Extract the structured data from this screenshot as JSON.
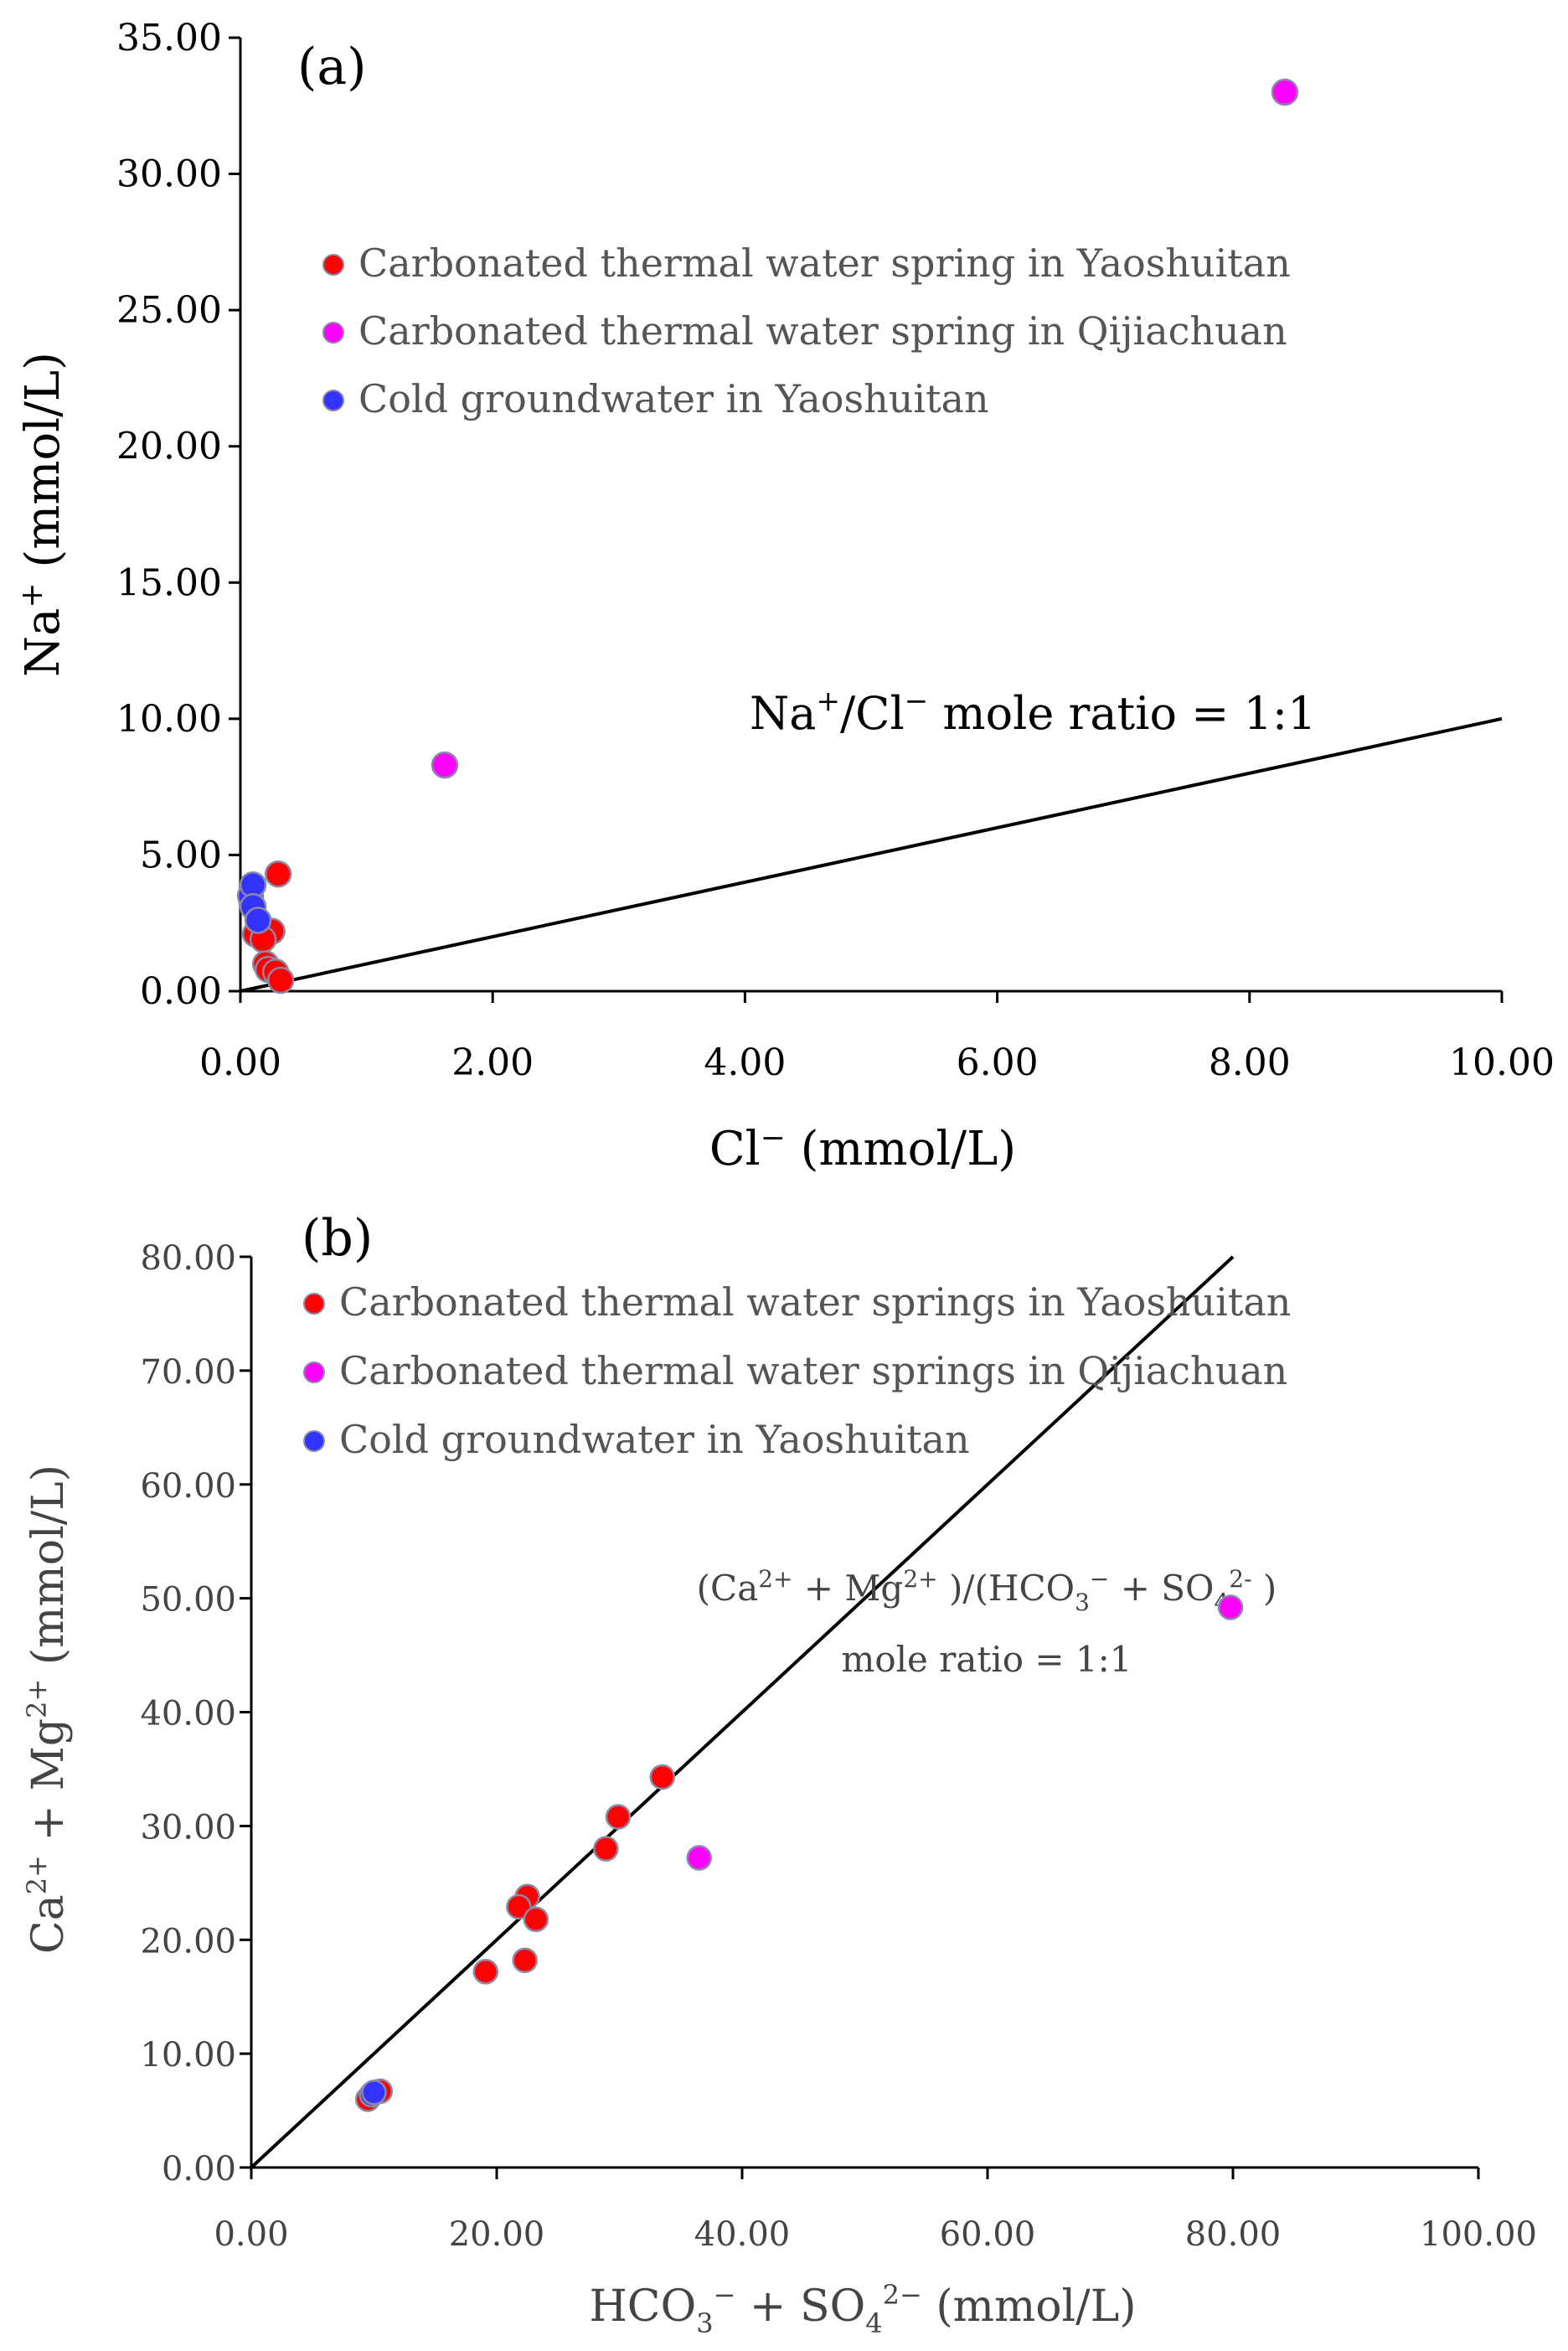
{
  "chart_data": [
    {
      "id": "a",
      "type": "scatter",
      "panel_label": "(a)",
      "xlabel_parts": [
        "Cl",
        "−",
        " (mmol/L)"
      ],
      "ylabel_parts": [
        "Na",
        "+",
        " (mmol/L)"
      ],
      "xlim": [
        0,
        10
      ],
      "ylim": [
        0,
        35
      ],
      "x_ticks": [
        "0.00",
        "2.00",
        "4.00",
        "6.00",
        "8.00",
        "10.00"
      ],
      "y_ticks": [
        "0.00",
        "5.00",
        "10.00",
        "15.00",
        "20.00",
        "25.00",
        "30.00",
        "35.00"
      ],
      "legend": [
        {
          "label": "Carbonated thermal water spring in Yaoshuitan",
          "color": "#ff0000"
        },
        {
          "label": "Carbonated thermal water spring in Qijiachuan",
          "color": "#ff00ff"
        },
        {
          "label": "Cold groundwater in Yaoshuitan",
          "color": "#3333ff"
        }
      ],
      "line": {
        "x": [
          0,
          10
        ],
        "y": [
          0,
          10
        ]
      },
      "annotation_parts": [
        "Na",
        "+",
        "/Cl",
        "−",
        " mole ratio  =  1:1"
      ],
      "series": [
        {
          "name": "Carbonated thermal water spring in Yaoshuitan",
          "color": "#ff0000",
          "x": [
            0.3,
            0.12,
            0.25,
            0.18,
            0.2,
            0.22,
            0.28,
            0.32
          ],
          "y": [
            4.3,
            2.1,
            2.2,
            1.9,
            1.0,
            0.8,
            0.7,
            0.4
          ]
        },
        {
          "name": "Carbonated thermal water spring in Qijiachuan",
          "color": "#ff00ff",
          "x": [
            1.62,
            8.28
          ],
          "y": [
            8.3,
            33.0
          ]
        },
        {
          "name": "Cold groundwater in Yaoshuitan",
          "color": "#3333ff",
          "x": [
            0.08,
            0.1,
            0.1,
            0.14
          ],
          "y": [
            3.5,
            3.9,
            3.1,
            2.6
          ]
        }
      ]
    },
    {
      "id": "b",
      "type": "scatter",
      "panel_label": "(b)",
      "xlabel_parts": [
        "HCO",
        "3",
        "−",
        " + SO",
        "4",
        "2−",
        "  (mmol/L)"
      ],
      "ylabel_parts": [
        "Ca",
        "2+",
        " + Mg",
        "2+",
        " (mmol/L)"
      ],
      "xlim": [
        0,
        100
      ],
      "ylim": [
        0,
        80
      ],
      "x_ticks": [
        "0.00",
        "20.00",
        "40.00",
        "60.00",
        "80.00",
        "100.00"
      ],
      "y_ticks": [
        "0.00",
        "10.00",
        "20.00",
        "30.00",
        "40.00",
        "50.00",
        "60.00",
        "70.00",
        "80.00"
      ],
      "legend": [
        {
          "label": "Carbonated thermal water springs in Yaoshuitan",
          "color": "#ff0000"
        },
        {
          "label": "Carbonated thermal water springs in Qijiachuan",
          "color": "#ff00ff"
        },
        {
          "label": "Cold groundwater in Yaoshuitan",
          "color": "#3333ff"
        }
      ],
      "line": {
        "x": [
          0,
          80
        ],
        "y": [
          0,
          80
        ]
      },
      "annotation_line1_parts": [
        "(Ca",
        "2+",
        " + Mg",
        "2+",
        " )/(HCO",
        "3",
        "−",
        " + SO",
        "4",
        "2-",
        " )"
      ],
      "annotation_line2": "mole ratio =  1:1",
      "series": [
        {
          "name": "Carbonated thermal water springs in Yaoshuitan",
          "color": "#ff0000",
          "x": [
            33.5,
            29.9,
            28.9,
            22.5,
            21.8,
            23.2,
            22.3,
            19.1,
            10.5,
            9.5
          ],
          "y": [
            34.3,
            30.8,
            28.0,
            23.8,
            22.9,
            21.8,
            18.2,
            17.2,
            6.7,
            6.0
          ]
        },
        {
          "name": "Carbonated thermal water springs in Qijiachuan",
          "color": "#ff00ff",
          "x": [
            79.8,
            36.5
          ],
          "y": [
            49.2,
            27.2
          ]
        },
        {
          "name": "Cold groundwater in Yaoshuitan",
          "color": "#3333ff",
          "x": [
            9.8,
            10.0
          ],
          "y": [
            6.4,
            6.6
          ]
        }
      ]
    }
  ]
}
